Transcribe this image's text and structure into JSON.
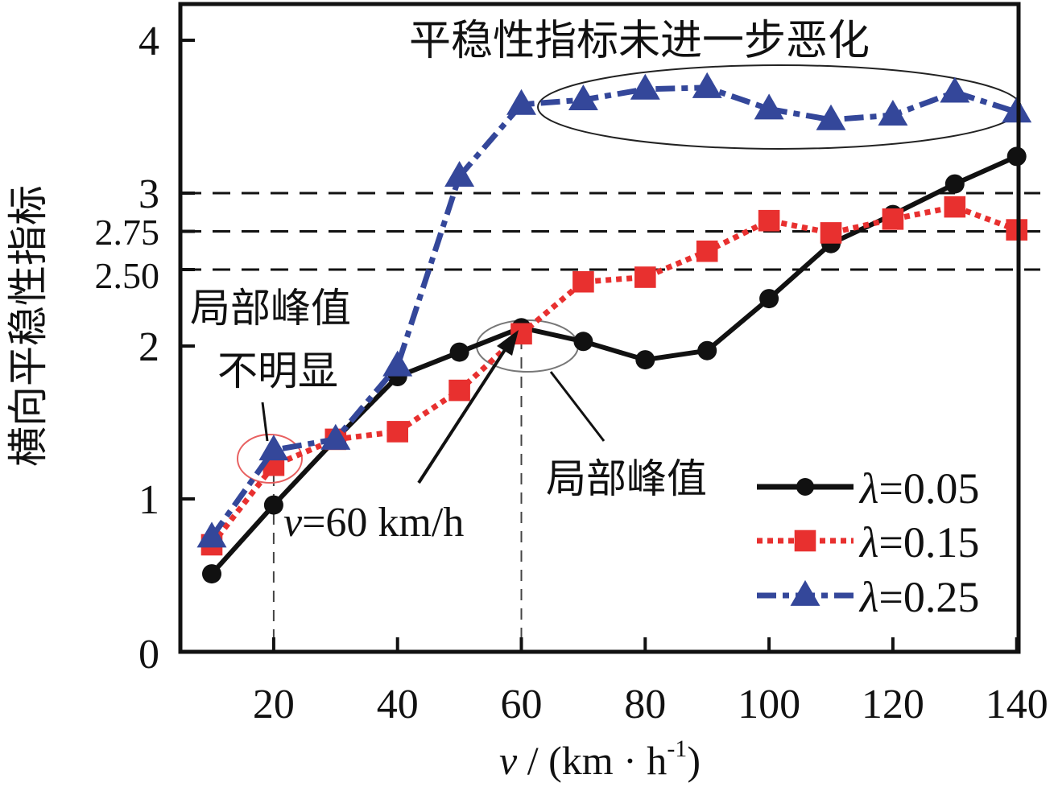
{
  "chart_data": {
    "type": "line",
    "title": "",
    "xlabel": "v / (km · h⁻¹)",
    "xlabel_parts": {
      "var": "v",
      "rest": " / (km · h",
      "sup": "-1",
      "close": ")"
    },
    "ylabel": "横向平稳性指标",
    "xlim": [
      5,
      142
    ],
    "ylim": [
      0,
      4.2
    ],
    "x_ticks": [
      20,
      40,
      60,
      80,
      100,
      120,
      140
    ],
    "x_tick_labels": [
      "20",
      "40",
      "60",
      "80",
      "100",
      "120",
      "140"
    ],
    "y_ticks": [
      0,
      1,
      2,
      3,
      4
    ],
    "y_tick_labels": [
      "0",
      "1",
      "2",
      "3",
      "4"
    ],
    "reference_lines": [
      {
        "y": 3.0,
        "label": "3"
      },
      {
        "y": 2.75,
        "label": "2.75"
      },
      {
        "y": 2.5,
        "label": "2.50"
      }
    ],
    "vertical_guides": [
      20,
      60
    ],
    "grid": false,
    "legend_position": "bottom-right",
    "x": [
      10,
      20,
      30,
      40,
      50,
      60,
      70,
      80,
      90,
      100,
      110,
      120,
      130,
      140
    ],
    "series": [
      {
        "name": "λ=0.05",
        "lambda": "λ",
        "value_label": "=0.05",
        "color": "#111111",
        "marker": "circle",
        "line_style": "solid",
        "values": [
          0.51,
          0.96,
          1.39,
          1.8,
          1.96,
          2.12,
          2.03,
          1.91,
          1.97,
          2.31,
          2.67,
          2.86,
          3.06,
          3.24
        ]
      },
      {
        "name": "λ=0.15",
        "lambda": "λ",
        "value_label": "=0.15",
        "color": "#e8302f",
        "marker": "square",
        "line_style": "dotted",
        "values": [
          0.7,
          1.22,
          1.39,
          1.44,
          1.71,
          2.08,
          2.42,
          2.45,
          2.62,
          2.82,
          2.74,
          2.83,
          2.91,
          2.76
        ]
      },
      {
        "name": "λ=0.25",
        "lambda": "λ",
        "value_label": "=0.25",
        "color": "#34479a",
        "marker": "triangle",
        "line_style": "dash-dot",
        "values": [
          0.75,
          1.32,
          1.39,
          1.87,
          3.11,
          3.58,
          3.61,
          3.68,
          3.69,
          3.55,
          3.48,
          3.51,
          3.66,
          3.53
        ]
      }
    ],
    "annotations": [
      {
        "id": "top",
        "text": "平稳性指标未进一步恶化",
        "target": "λ=0.25 plateau, v=60–140"
      },
      {
        "id": "left-1",
        "text": "局部峰值",
        "target": "v=20"
      },
      {
        "id": "left-2",
        "text": "不明显",
        "target": "v=20"
      },
      {
        "id": "peak",
        "text": "局部峰值",
        "target": "λ=0.05 at v=60"
      },
      {
        "id": "arrow",
        "text_var": "v",
        "text": "=60 km/h",
        "target": "v=60"
      }
    ]
  }
}
